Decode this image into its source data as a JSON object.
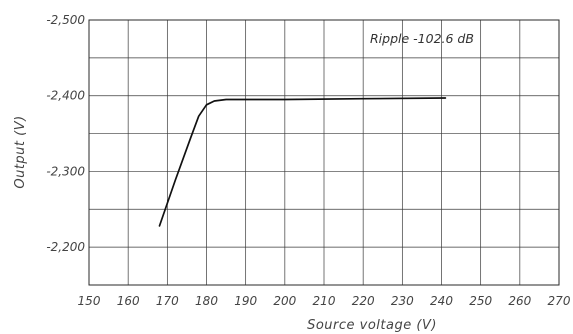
{
  "chart_data": {
    "type": "line",
    "title": "",
    "xlabel": "Source voltage (V)",
    "ylabel": "Output (V)",
    "xlim": [
      150,
      270
    ],
    "ylim": [
      -2150,
      -2500
    ],
    "x_ticks": [
      150,
      160,
      170,
      180,
      190,
      200,
      210,
      220,
      230,
      240,
      250,
      260,
      270
    ],
    "x_tick_labels": [
      "150",
      "160",
      "170",
      "180",
      "190",
      "200",
      "210",
      "220",
      "230",
      "240",
      "250",
      "260",
      "270"
    ],
    "y_ticks": [
      -2500,
      -2400,
      -2300,
      -2200
    ],
    "y_tick_labels": [
      "-2,500",
      "-2,400",
      "-2,300",
      "-2,200"
    ],
    "y_minor_step": 50,
    "grid": true,
    "annotation": "Ripple  -102.6 dB",
    "series": [
      {
        "color": "#111111",
        "points": [
          [
            168,
            -2228
          ],
          [
            172,
            -2288
          ],
          [
            176,
            -2345
          ],
          [
            178,
            -2373
          ],
          [
            180,
            -2388
          ],
          [
            182,
            -2393
          ],
          [
            185,
            -2395
          ],
          [
            200,
            -2395
          ],
          [
            220,
            -2396
          ],
          [
            241,
            -2397
          ]
        ]
      }
    ]
  }
}
